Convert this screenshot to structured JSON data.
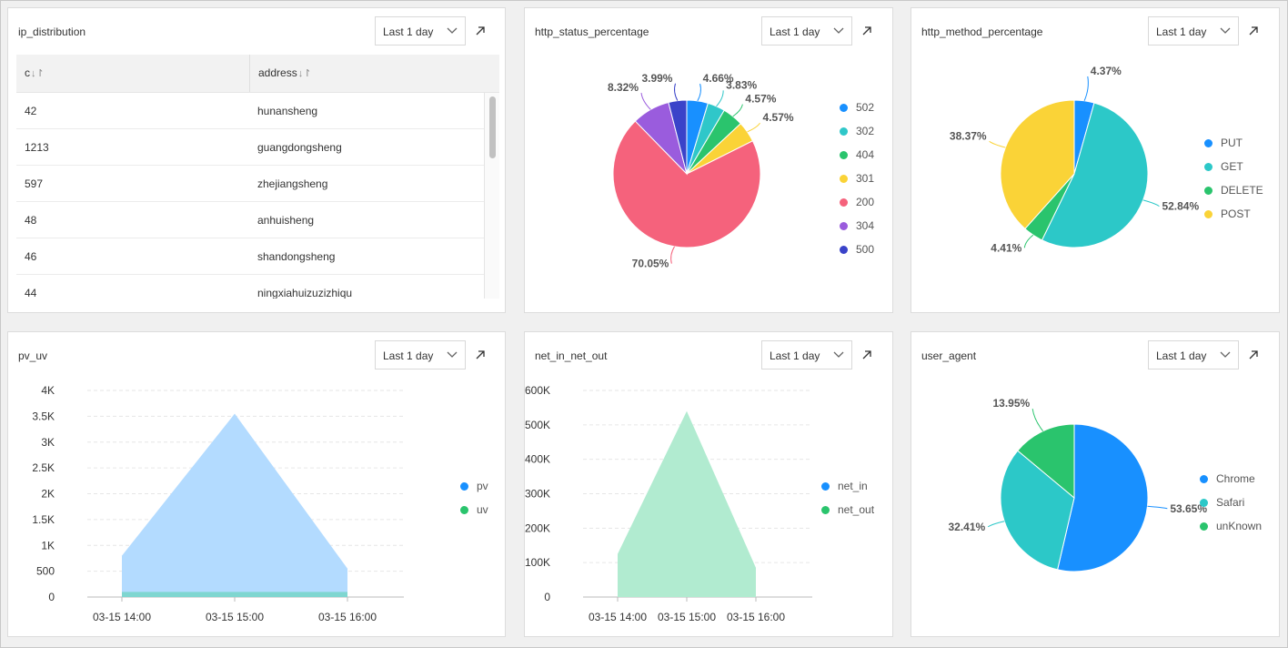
{
  "time_label": "Last 1 day",
  "panels": {
    "ip": {
      "title": "ip_distribution"
    },
    "status": {
      "title": "http_status_percentage"
    },
    "method": {
      "title": "http_method_percentage"
    },
    "pvuv": {
      "title": "pv_uv"
    },
    "net": {
      "title": "net_in_net_out"
    },
    "ua": {
      "title": "user_agent"
    }
  },
  "table": {
    "columns": [
      "c",
      "address"
    ],
    "rows": [
      [
        "42",
        "hunansheng"
      ],
      [
        "1213",
        "guangdongsheng"
      ],
      [
        "597",
        "zhejiangsheng"
      ],
      [
        "48",
        "anhuisheng"
      ],
      [
        "46",
        "shandongsheng"
      ],
      [
        "44",
        "ningxiahuizuzizhiqu"
      ]
    ]
  },
  "icons": {
    "expand": "expand-arrow-icon",
    "dropdown": "chevron-down-icon",
    "sort": "sort-icon"
  },
  "chart_data": [
    {
      "type": "pie",
      "title": "http_status_percentage",
      "labels": [
        "502",
        "302",
        "404",
        "301",
        "200",
        "304",
        "500"
      ],
      "values": [
        4.66,
        3.83,
        4.57,
        4.57,
        70.05,
        8.32,
        3.99
      ],
      "value_labels": [
        "4.66%",
        "3.83%",
        "4.57%",
        "4.57%",
        "70.05%",
        "8.32%",
        "3.99%"
      ],
      "colors": [
        "#1890ff",
        "#2fc7c9",
        "#2ac46d",
        "#fad337",
        "#f5627c",
        "#9a5cdd",
        "#3a43c9"
      ],
      "legend": "right"
    },
    {
      "type": "pie",
      "title": "http_method_percentage",
      "labels": [
        "PUT",
        "GET",
        "DELETE",
        "POST"
      ],
      "values": [
        4.37,
        52.84,
        4.41,
        38.37
      ],
      "value_labels": [
        "4.37%",
        "52.84%",
        "4.41%",
        "38.37%"
      ],
      "colors": [
        "#1890ff",
        "#2cc8c8",
        "#2ac46d",
        "#fad337"
      ],
      "legend": "right"
    },
    {
      "type": "area",
      "title": "pv_uv",
      "x": [
        "03-15 14:00",
        "03-15 15:00",
        "03-15 16:00"
      ],
      "ylim": [
        0,
        4000
      ],
      "yticks": [
        "0",
        "500",
        "1K",
        "1.5K",
        "2K",
        "2.5K",
        "3K",
        "3.5K",
        "4K"
      ],
      "series": [
        {
          "name": "pv",
          "values": [
            800,
            3550,
            550
          ],
          "color": "#1890ff"
        },
        {
          "name": "uv",
          "values": [
            100,
            100,
            100
          ],
          "color": "#2ac46d"
        }
      ],
      "grid": true,
      "legend": "right"
    },
    {
      "type": "area",
      "title": "net_in_net_out",
      "x": [
        "03-15 14:00",
        "03-15 15:00",
        "03-15 16:00"
      ],
      "ylim": [
        0,
        600000
      ],
      "yticks": [
        "0",
        "100K",
        "200K",
        "300K",
        "400K",
        "500K",
        "600K"
      ],
      "series": [
        {
          "name": "net_in",
          "values": [
            0,
            0,
            0
          ],
          "color": "#1890ff"
        },
        {
          "name": "net_out",
          "values": [
            125000,
            540000,
            85000
          ],
          "color": "#2ac46d"
        }
      ],
      "grid": true,
      "legend": "right"
    },
    {
      "type": "pie",
      "title": "user_agent",
      "labels": [
        "Chrome",
        "Safari",
        "unKnown"
      ],
      "values": [
        53.65,
        32.41,
        13.95
      ],
      "value_labels": [
        "53.65%",
        "32.41%",
        "13.95%"
      ],
      "colors": [
        "#1890ff",
        "#2cc8c8",
        "#2ac46d"
      ],
      "legend": "right"
    }
  ]
}
